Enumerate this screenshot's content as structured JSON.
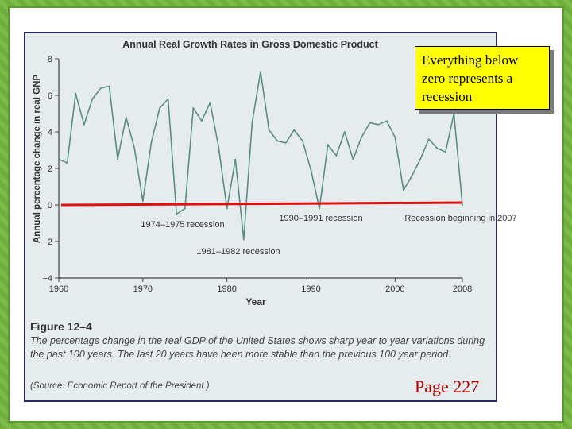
{
  "callout": {
    "text": "Everything below zero represents a recession"
  },
  "page_ref": "Page 227",
  "figure": {
    "label": "Figure 12–4",
    "caption": "The percentage change in the real GDP of the United States shows sharp year to year variations during the past 100 years. The last 20 years have been more stable than the previous 100 year period.",
    "source": "(Source: Economic Report of the President.)"
  },
  "colors": {
    "line": "#5b8c86",
    "zero_line": "#e01010",
    "callout_bg": "#ffff00",
    "background": "#6fae3c"
  },
  "chart_data": {
    "type": "line",
    "title": "Annual Real Growth Rates in Gross Domestic Product",
    "xlabel": "Year",
    "ylabel": "Annual percentage change in real GNP",
    "xlim": [
      1960,
      2008
    ],
    "ylim": [
      -4,
      8
    ],
    "x_ticks": [
      "1960",
      "1970",
      "1980",
      "1990",
      "2000",
      "2008"
    ],
    "y_ticks": [
      "8",
      "6",
      "4",
      "2",
      "0",
      "−2",
      "−4"
    ],
    "series": [
      {
        "x": [
          1960,
          1961,
          1962,
          1963,
          1964,
          1965,
          1966,
          1967,
          1968,
          1969,
          1970,
          1971,
          1972,
          1973,
          1974,
          1975,
          1976,
          1977,
          1978,
          1979,
          1980,
          1981,
          1982,
          1983,
          1984,
          1985,
          1986,
          1987,
          1988,
          1989,
          1990,
          1991,
          1992,
          1993,
          1994,
          1995,
          1996,
          1997,
          1998,
          1999,
          2000,
          2001,
          2002,
          2003,
          2004,
          2005,
          2006,
          2007,
          2008
        ],
        "y": [
          2.5,
          2.3,
          6.1,
          4.4,
          5.8,
          6.4,
          6.5,
          2.5,
          4.8,
          3.1,
          0.2,
          3.4,
          5.3,
          5.8,
          -0.5,
          -0.2,
          5.3,
          4.6,
          5.6,
          3.2,
          -0.2,
          2.5,
          -1.9,
          4.5,
          7.3,
          4.1,
          3.5,
          3.4,
          4.1,
          3.5,
          1.9,
          -0.2,
          3.3,
          2.7,
          4.0,
          2.5,
          3.7,
          4.5,
          4.4,
          4.6,
          3.7,
          0.8,
          1.6,
          2.5,
          3.6,
          3.1,
          2.9,
          5.0,
          0.0
        ]
      }
    ],
    "annotations": [
      "1974–1975 recession",
      "1981–1982 recession",
      "1990–1991 recession",
      "Recession beginning in 2007"
    ]
  }
}
